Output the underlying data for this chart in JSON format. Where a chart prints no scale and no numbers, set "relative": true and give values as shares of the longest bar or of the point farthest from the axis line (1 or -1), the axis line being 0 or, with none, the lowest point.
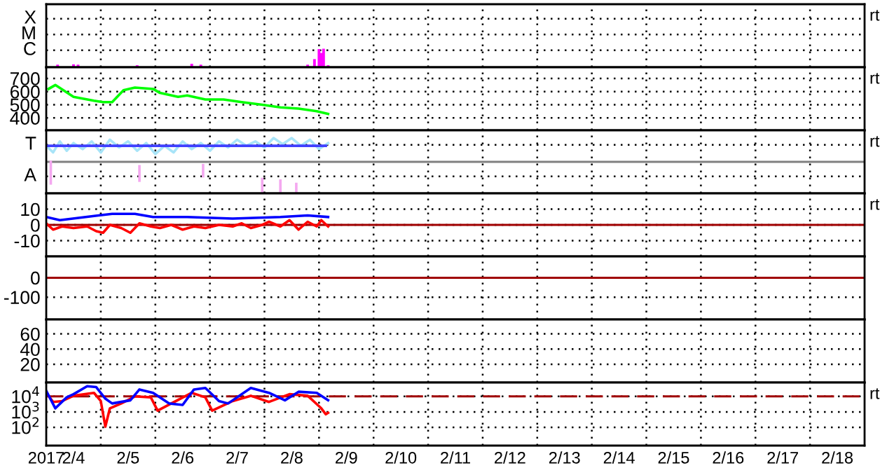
{
  "chart_data": [
    {
      "type": "bar",
      "relative": true,
      "xlim": [
        "2017-02-04T00:00",
        "2017-02-19T00:00"
      ],
      "xticks": [
        {
          "value": "2017-02-05T00:00",
          "label": null
        },
        {
          "value": "2017-02-06T00:00",
          "label": null
        },
        {
          "value": "2017-02-07T00:00",
          "label": null
        },
        {
          "value": "2017-02-08T00:00",
          "label": null
        },
        {
          "value": "2017-02-09T00:00",
          "label": null
        },
        {
          "value": "2017-02-10T00:00",
          "label": null
        },
        {
          "value": "2017-02-11T00:00",
          "label": null
        },
        {
          "value": "2017-02-12T00:00",
          "label": null
        },
        {
          "value": "2017-02-13T00:00",
          "label": null
        },
        {
          "value": "2017-02-14T00:00",
          "label": null
        },
        {
          "value": "2017-02-15T00:00",
          "label": null
        },
        {
          "value": "2017-02-16T00:00",
          "label": null
        },
        {
          "value": "2017-02-17T00:00",
          "label": null
        },
        {
          "value": "2017-02-18T00:00",
          "label": null
        }
      ],
      "tick_labels": "y",
      "grid": true,
      "annotations": [
        "X",
        "M",
        "C",
        "rt"
      ],
      "series": [
        {
          "color": "#ff00ff",
          "x": [
            "2017-02-04T05:00",
            "2017-02-04T12:00",
            "2017-02-04T14:00",
            "2017-02-05T16:00",
            "2017-02-06T16:00",
            "2017-02-06T20:00",
            "2017-02-08T19:00",
            "2017-02-08T22:00",
            "2017-02-09T00:00",
            "2017-02-09T01:00",
            "2017-02-09T02:00",
            "2017-02-09T04:00"
          ],
          "values": [
            0.14,
            0.16,
            0.14,
            0.11,
            0.19,
            0.14,
            0.14,
            0.44,
            0.98,
            0.77,
            1,
            0.11
          ]
        }
      ]
    },
    {
      "type": "line",
      "xlim": [
        "2017-02-04T00:00",
        "2017-02-19T00:00"
      ],
      "ylim": [
        305,
        785
      ],
      "yticks": [
        400,
        500,
        600,
        700
      ],
      "xticks": [
        {
          "value": "2017-02-05T00:00",
          "label": null
        },
        {
          "value": "2017-02-06T00:00",
          "label": null
        },
        {
          "value": "2017-02-07T00:00",
          "label": null
        },
        {
          "value": "2017-02-08T00:00",
          "label": null
        },
        {
          "value": "2017-02-09T00:00",
          "label": null
        },
        {
          "value": "2017-02-10T00:00",
          "label": null
        },
        {
          "value": "2017-02-11T00:00",
          "label": null
        },
        {
          "value": "2017-02-12T00:00",
          "label": null
        },
        {
          "value": "2017-02-13T00:00",
          "label": null
        },
        {
          "value": "2017-02-14T00:00",
          "label": null
        },
        {
          "value": "2017-02-15T00:00",
          "label": null
        },
        {
          "value": "2017-02-16T00:00",
          "label": null
        },
        {
          "value": "2017-02-17T00:00",
          "label": null
        },
        {
          "value": "2017-02-18T00:00",
          "label": null
        }
      ],
      "tick_labels": "y",
      "grid": true,
      "annotations": [
        "rt"
      ],
      "series": [
        {
          "color": "#00ff00",
          "x": [
            "2017-02-04T01:00",
            "2017-02-04T04:00",
            "2017-02-04T12:00",
            "2017-02-04T21:00",
            "2017-02-05T01:00",
            "2017-02-05T05:00",
            "2017-02-05T10:00",
            "2017-02-05T15:00",
            "2017-02-05T23:00",
            "2017-02-06T02:00",
            "2017-02-06T10:00",
            "2017-02-06T14:00",
            "2017-02-06T22:00",
            "2017-02-07T06:00",
            "2017-02-07T14:00",
            "2017-02-07T23:00",
            "2017-02-08T07:00",
            "2017-02-08T15:00",
            "2017-02-08T23:00",
            "2017-02-09T04:00"
          ],
          "values": [
            620,
            650,
            560,
            530,
            520,
            520,
            610,
            630,
            620,
            590,
            560,
            570,
            540,
            540,
            520,
            500,
            480,
            470,
            450,
            430
          ]
        }
      ]
    },
    {
      "type": "line",
      "relative": true,
      "xlim": [
        "2017-02-04T00:00",
        "2017-02-19T00:00"
      ],
      "xticks": [
        {
          "value": "2017-02-05T00:00",
          "label": null
        },
        {
          "value": "2017-02-06T00:00",
          "label": null
        },
        {
          "value": "2017-02-07T00:00",
          "label": null
        },
        {
          "value": "2017-02-08T00:00",
          "label": null
        },
        {
          "value": "2017-02-09T00:00",
          "label": null
        },
        {
          "value": "2017-02-10T00:00",
          "label": null
        },
        {
          "value": "2017-02-11T00:00",
          "label": null
        },
        {
          "value": "2017-02-12T00:00",
          "label": null
        },
        {
          "value": "2017-02-13T00:00",
          "label": null
        },
        {
          "value": "2017-02-14T00:00",
          "label": null
        },
        {
          "value": "2017-02-15T00:00",
          "label": null
        },
        {
          "value": "2017-02-16T00:00",
          "label": null
        },
        {
          "value": "2017-02-17T00:00",
          "label": null
        },
        {
          "value": "2017-02-18T00:00",
          "label": null
        }
      ],
      "tick_labels": "y",
      "grid": true,
      "annotations": [
        "T",
        "A",
        "rt"
      ],
      "ref_lines": [
        {
          "axis": "y",
          "value": 0.57,
          "color": "#808080"
        }
      ],
      "series": [
        {
          "color": "#f4a8f0",
          "x": [
            "2017-02-04T02:00",
            "2017-02-04T02:00"
          ],
          "values": [
            0.18,
            0.57
          ]
        },
        {
          "color": "#f4a8f0",
          "x": [
            "2017-02-05T17:00",
            "2017-02-05T17:00"
          ],
          "values": [
            0.23,
            0.49
          ]
        },
        {
          "color": "#f4a8f0",
          "x": [
            "2017-02-06T21:00",
            "2017-02-06T21:00"
          ],
          "values": [
            0.31,
            0.51
          ]
        },
        {
          "color": "#f4a8f0",
          "x": [
            "2017-02-07T23:00",
            "2017-02-07T23:00"
          ],
          "values": [
            0,
            0.26
          ]
        },
        {
          "color": "#f4a8f0",
          "x": [
            "2017-02-08T07:00",
            "2017-02-08T07:00"
          ],
          "values": [
            0,
            0.23
          ]
        },
        {
          "color": "#f4a8f0",
          "x": [
            "2017-02-08T14:00",
            "2017-02-08T14:00"
          ],
          "values": [
            0,
            0.17
          ]
        },
        {
          "color": "#a8e4f8",
          "x": [
            "2017-02-04T00:00",
            "2017-02-04T03:00",
            "2017-02-04T06:00",
            "2017-02-04T09:00",
            "2017-02-04T12:00",
            "2017-02-04T16:00",
            "2017-02-04T20:00",
            "2017-02-05T00:00",
            "2017-02-05T04:00",
            "2017-02-05T08:00",
            "2017-02-05T12:00",
            "2017-02-05T16:00",
            "2017-02-05T20:00",
            "2017-02-06T00:00",
            "2017-02-06T04:00",
            "2017-02-06T08:00",
            "2017-02-06T12:00",
            "2017-02-06T16:00",
            "2017-02-06T20:00",
            "2017-02-07T00:00",
            "2017-02-07T04:00",
            "2017-02-07T08:00",
            "2017-02-07T12:00",
            "2017-02-07T16:00",
            "2017-02-07T20:00",
            "2017-02-08T00:00",
            "2017-02-08T04:00",
            "2017-02-08T08:00",
            "2017-02-08T12:00",
            "2017-02-08T16:00",
            "2017-02-08T20:00",
            "2017-02-09T00:00",
            "2017-02-09T04:00"
          ],
          "values": [
            0.86,
            0.74,
            0.94,
            0.77,
            0.91,
            0.8,
            0.94,
            0.74,
            0.97,
            0.83,
            0.94,
            0.77,
            0.91,
            0.71,
            0.86,
            0.74,
            0.94,
            0.8,
            0.91,
            0.77,
            0.94,
            0.83,
            0.97,
            0.86,
            0.94,
            0.83,
            1,
            0.89,
            1,
            0.86,
            0.97,
            0.8,
            0.91
          ]
        },
        {
          "color": "#4040ff",
          "x": [
            "2017-02-04T00:00",
            "2017-02-09T03:00"
          ],
          "values": [
            0.86,
            0.86
          ]
        }
      ]
    },
    {
      "type": "line",
      "xlim": [
        "2017-02-04T00:00",
        "2017-02-19T00:00"
      ],
      "ylim": [
        -20,
        20
      ],
      "yticks": [
        -10,
        0,
        10
      ],
      "xticks": [
        {
          "value": "2017-02-05T00:00",
          "label": null
        },
        {
          "value": "2017-02-06T00:00",
          "label": null
        },
        {
          "value": "2017-02-07T00:00",
          "label": null
        },
        {
          "value": "2017-02-08T00:00",
          "label": null
        },
        {
          "value": "2017-02-09T00:00",
          "label": null
        },
        {
          "value": "2017-02-10T00:00",
          "label": null
        },
        {
          "value": "2017-02-11T00:00",
          "label": null
        },
        {
          "value": "2017-02-12T00:00",
          "label": null
        },
        {
          "value": "2017-02-13T00:00",
          "label": null
        },
        {
          "value": "2017-02-14T00:00",
          "label": null
        },
        {
          "value": "2017-02-15T00:00",
          "label": null
        },
        {
          "value": "2017-02-16T00:00",
          "label": null
        },
        {
          "value": "2017-02-17T00:00",
          "label": null
        },
        {
          "value": "2017-02-18T00:00",
          "label": null
        }
      ],
      "tick_labels": "y",
      "grid": true,
      "annotations": [
        "rt"
      ],
      "ref_lines": [
        {
          "axis": "y",
          "value": 0,
          "color": "#a00000"
        }
      ],
      "series": [
        {
          "color": "#0000ff",
          "x": [
            "2017-02-04T00:00",
            "2017-02-04T06:00",
            "2017-02-04T23:00",
            "2017-02-05T05:00",
            "2017-02-05T15:00",
            "2017-02-05T23:00",
            "2017-02-06T14:00",
            "2017-02-07T10:00",
            "2017-02-08T07:00",
            "2017-02-08T19:00",
            "2017-02-09T04:00"
          ],
          "values": [
            5,
            3,
            6,
            7,
            7,
            5,
            5,
            4,
            5,
            6,
            5
          ]
        },
        {
          "color": "#ff0000",
          "x": [
            "2017-02-04T00:00",
            "2017-02-04T03:00",
            "2017-02-04T07:00",
            "2017-02-04T12:00",
            "2017-02-04T18:00",
            "2017-02-04T22:00",
            "2017-02-05T01:00",
            "2017-02-05T04:00",
            "2017-02-05T09:00",
            "2017-02-05T13:00",
            "2017-02-05T17:00",
            "2017-02-05T22:00",
            "2017-02-06T02:00",
            "2017-02-06T07:00",
            "2017-02-06T12:00",
            "2017-02-06T17:00",
            "2017-02-06T22:00",
            "2017-02-07T04:00",
            "2017-02-07T10:00",
            "2017-02-07T14:00",
            "2017-02-07T18:00",
            "2017-02-07T23:00",
            "2017-02-08T02:00",
            "2017-02-08T07:00",
            "2017-02-08T11:00",
            "2017-02-08T15:00",
            "2017-02-08T19:00",
            "2017-02-08T23:00",
            "2017-02-09T01:00",
            "2017-02-09T04:00"
          ],
          "values": [
            1,
            -3,
            -1,
            -2,
            -1,
            -4,
            -5,
            0,
            -2,
            -5,
            1,
            -1,
            -2,
            0,
            -3,
            -1,
            -2,
            0,
            -1,
            1,
            -2,
            0,
            2,
            -1,
            3,
            -3,
            2,
            -1,
            3,
            -1
          ]
        }
      ]
    },
    {
      "type": "line",
      "xlim": [
        "2017-02-04T00:00",
        "2017-02-19T00:00"
      ],
      "ylim": [
        -215,
        110
      ],
      "yticks": [
        -100,
        0
      ],
      "xticks": [
        {
          "value": "2017-02-05T00:00",
          "label": null
        },
        {
          "value": "2017-02-06T00:00",
          "label": null
        },
        {
          "value": "2017-02-07T00:00",
          "label": null
        },
        {
          "value": "2017-02-08T00:00",
          "label": null
        },
        {
          "value": "2017-02-09T00:00",
          "label": null
        },
        {
          "value": "2017-02-10T00:00",
          "label": null
        },
        {
          "value": "2017-02-11T00:00",
          "label": null
        },
        {
          "value": "2017-02-12T00:00",
          "label": null
        },
        {
          "value": "2017-02-13T00:00",
          "label": null
        },
        {
          "value": "2017-02-14T00:00",
          "label": null
        },
        {
          "value": "2017-02-15T00:00",
          "label": null
        },
        {
          "value": "2017-02-16T00:00",
          "label": null
        },
        {
          "value": "2017-02-17T00:00",
          "label": null
        },
        {
          "value": "2017-02-18T00:00",
          "label": null
        }
      ],
      "tick_labels": "y",
      "grid": true,
      "ref_lines": [
        {
          "axis": "y",
          "value": 0,
          "color": "#a00000"
        }
      ]
    },
    {
      "type": "line",
      "xlim": [
        "2017-02-04T00:00",
        "2017-02-19T00:00"
      ],
      "ylim": [
        -4,
        79
      ],
      "yticks": [
        20,
        40,
        60
      ],
      "xticks": [
        {
          "value": "2017-02-05T00:00",
          "label": null
        },
        {
          "value": "2017-02-06T00:00",
          "label": null
        },
        {
          "value": "2017-02-07T00:00",
          "label": null
        },
        {
          "value": "2017-02-08T00:00",
          "label": null
        },
        {
          "value": "2017-02-09T00:00",
          "label": null
        },
        {
          "value": "2017-02-10T00:00",
          "label": null
        },
        {
          "value": "2017-02-11T00:00",
          "label": null
        },
        {
          "value": "2017-02-12T00:00",
          "label": null
        },
        {
          "value": "2017-02-13T00:00",
          "label": null
        },
        {
          "value": "2017-02-14T00:00",
          "label": null
        },
        {
          "value": "2017-02-15T00:00",
          "label": null
        },
        {
          "value": "2017-02-16T00:00",
          "label": null
        },
        {
          "value": "2017-02-17T00:00",
          "label": null
        },
        {
          "value": "2017-02-18T00:00",
          "label": null
        }
      ],
      "tick_labels": "y",
      "grid": true
    },
    {
      "type": "line",
      "log": "y",
      "xlim": [
        "2017-02-04T00:00",
        "2017-02-19T00:00"
      ],
      "ylim": [
        6.6,
        79000
      ],
      "yticks": [
        {
          "value": 100,
          "label": "10$^{2}$"
        },
        {
          "value": 1000,
          "label": "10$^{3}$"
        },
        {
          "value": 10000,
          "label": "10$^{4}$"
        }
      ],
      "xticks": [
        {
          "value": "2017-02-04T00:00",
          "label": "2017"
        },
        {
          "value": "2017-02-04T12:00",
          "label": "2/4"
        },
        {
          "value": "2017-02-05T00:00",
          "label": null
        },
        {
          "value": "2017-02-05T12:00",
          "label": "2/5"
        },
        {
          "value": "2017-02-06T00:00",
          "label": null
        },
        {
          "value": "2017-02-06T12:00",
          "label": "2/6"
        },
        {
          "value": "2017-02-07T00:00",
          "label": null
        },
        {
          "value": "2017-02-07T12:00",
          "label": "2/7"
        },
        {
          "value": "2017-02-08T00:00",
          "label": null
        },
        {
          "value": "2017-02-08T12:00",
          "label": "2/8"
        },
        {
          "value": "2017-02-09T00:00",
          "label": null
        },
        {
          "value": "2017-02-09T12:00",
          "label": "2/9"
        },
        {
          "value": "2017-02-10T00:00",
          "label": null
        },
        {
          "value": "2017-02-10T12:00",
          "label": "2/10"
        },
        {
          "value": "2017-02-11T00:00",
          "label": null
        },
        {
          "value": "2017-02-11T12:00",
          "label": "2/11"
        },
        {
          "value": "2017-02-12T00:00",
          "label": null
        },
        {
          "value": "2017-02-12T12:00",
          "label": "2/12"
        },
        {
          "value": "2017-02-13T00:00",
          "label": null
        },
        {
          "value": "2017-02-13T12:00",
          "label": "2/13"
        },
        {
          "value": "2017-02-14T00:00",
          "label": null
        },
        {
          "value": "2017-02-14T12:00",
          "label": "2/14"
        },
        {
          "value": "2017-02-15T00:00",
          "label": null
        },
        {
          "value": "2017-02-15T12:00",
          "label": "2/15"
        },
        {
          "value": "2017-02-16T00:00",
          "label": null
        },
        {
          "value": "2017-02-16T12:00",
          "label": "2/16"
        },
        {
          "value": "2017-02-17T00:00",
          "label": null
        },
        {
          "value": "2017-02-17T12:00",
          "label": "2/17"
        },
        {
          "value": "2017-02-18T00:00",
          "label": null
        },
        {
          "value": "2017-02-18T12:00",
          "label": "2/18"
        }
      ],
      "grid": true,
      "annotations": [
        "rt"
      ],
      "ref_lines": [
        {
          "axis": "y",
          "value": 10000,
          "color": "#a00000",
          "line_style": "dashed"
        }
      ],
      "series": [
        {
          "color": "#ff0000",
          "x": [
            "2017-02-04T00:00",
            "2017-02-04T03:00",
            "2017-02-04T07:00",
            "2017-02-04T12:00",
            "2017-02-04T21:00",
            "2017-02-05T00:00",
            "2017-02-05T02:00",
            "2017-02-05T04:00",
            "2017-02-05T09:00",
            "2017-02-05T15:00",
            "2017-02-05T22:00",
            "2017-02-06T01:00",
            "2017-02-06T07:00",
            "2017-02-06T16:00",
            "2017-02-06T22:00",
            "2017-02-07T01:00",
            "2017-02-07T10:00",
            "2017-02-07T18:00",
            "2017-02-08T02:00",
            "2017-02-08T11:00",
            "2017-02-08T19:00",
            "2017-02-09T01:00",
            "2017-02-09T03:00",
            "2017-02-09T04:00"
          ],
          "values": [
            17000,
            4400,
            5000,
            11000,
            17000,
            5000,
            110,
            1700,
            3500,
            10000,
            8700,
            1200,
            3500,
            17000,
            8700,
            1200,
            5000,
            11000,
            4400,
            14000,
            11000,
            1700,
            700,
            870
          ]
        },
        {
          "color": "#0000ff",
          "x": [
            "2017-02-04T00:00",
            "2017-02-04T04:00",
            "2017-02-04T09:00",
            "2017-02-04T12:00",
            "2017-02-04T18:00",
            "2017-02-04T22:00",
            "2017-02-05T02:00",
            "2017-02-05T05:00",
            "2017-02-05T13:00",
            "2017-02-05T17:00",
            "2017-02-05T23:00",
            "2017-02-06T06:00",
            "2017-02-06T12:00",
            "2017-02-06T17:00",
            "2017-02-06T22:00",
            "2017-02-07T04:00",
            "2017-02-07T08:00",
            "2017-02-07T18:00",
            "2017-02-08T02:00",
            "2017-02-08T09:00",
            "2017-02-08T15:00",
            "2017-02-08T23:00",
            "2017-02-09T04:00"
          ],
          "values": [
            23000,
            1700,
            8700,
            14000,
            46000,
            40000,
            7100,
            3500,
            5600,
            28000,
            17000,
            3500,
            2800,
            28000,
            35000,
            5000,
            3500,
            35000,
            17000,
            5600,
            20000,
            17000,
            5600
          ]
        }
      ]
    }
  ]
}
